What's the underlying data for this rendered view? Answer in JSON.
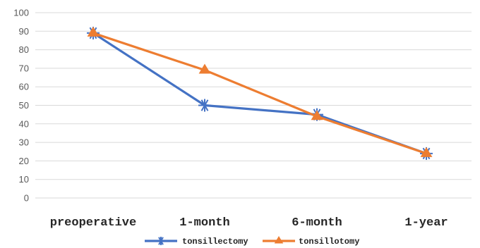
{
  "chart_data": {
    "type": "line",
    "categories": [
      "preoperative",
      "1-month",
      "6-month",
      "1-year"
    ],
    "series": [
      {
        "name": "tonsillectomy",
        "values": [
          89,
          50,
          45,
          24
        ],
        "color": "#4472c4",
        "marker": "star"
      },
      {
        "name": "tonsillotomy",
        "values": [
          89,
          69,
          44,
          24
        ],
        "color": "#ed7d31",
        "marker": "triangle"
      }
    ],
    "ylim": [
      0,
      100
    ],
    "yticks": [
      "0",
      "10",
      "20",
      "30",
      "40",
      "50",
      "60",
      "70",
      "80",
      "90",
      "100"
    ],
    "grid": true,
    "legend": "bottom"
  }
}
